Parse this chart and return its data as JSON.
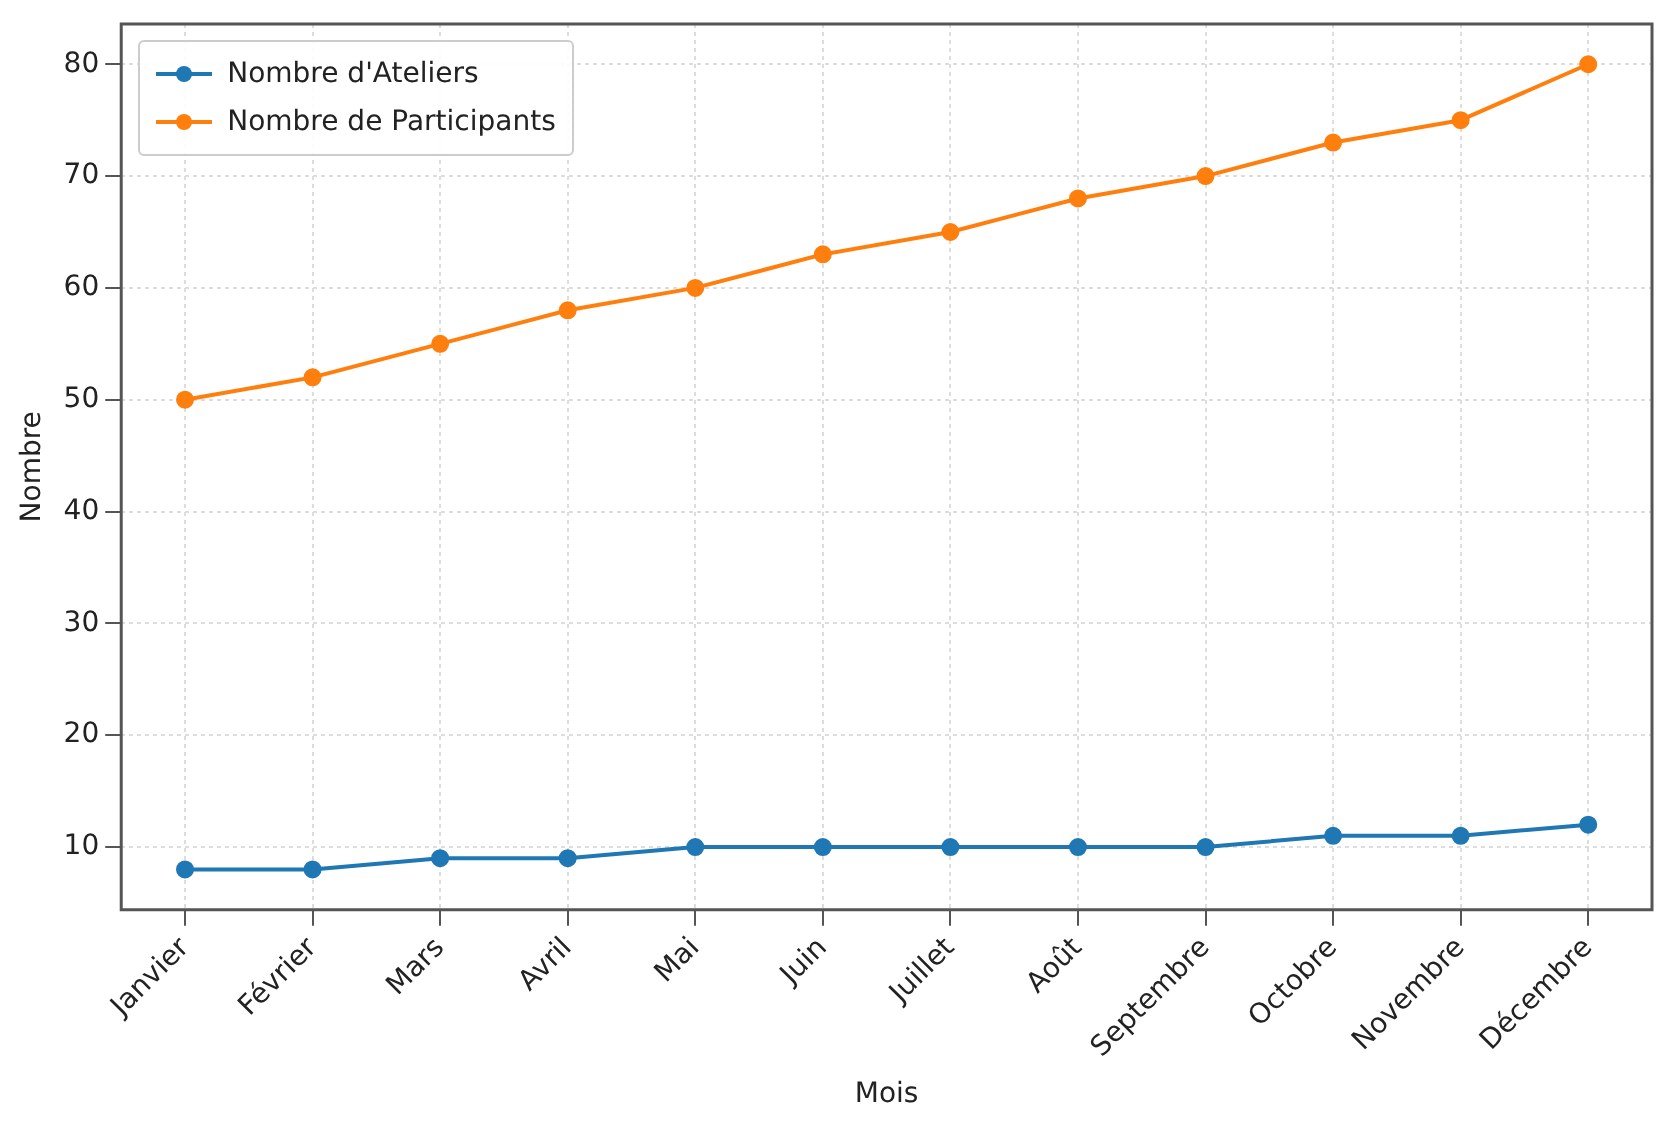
{
  "chart_data": {
    "type": "line",
    "xlabel": "Mois",
    "ylabel": "Nombre",
    "categories": [
      "Janvier",
      "Février",
      "Mars",
      "Avril",
      "Mai",
      "Juin",
      "Juillet",
      "Août",
      "Septembre",
      "Octobre",
      "Novembre",
      "Décembre"
    ],
    "series": [
      {
        "name": "Nombre d'Ateliers",
        "color": "#1f77b4",
        "values": [
          8,
          8,
          9,
          9,
          10,
          10,
          10,
          10,
          10,
          11,
          11,
          12
        ]
      },
      {
        "name": "Nombre de Participants",
        "color": "#ff7f0e",
        "values": [
          50,
          52,
          55,
          58,
          60,
          63,
          65,
          68,
          70,
          73,
          75,
          80
        ]
      }
    ],
    "ylim": [
      4.4,
      83.6
    ],
    "yticks": [
      10,
      20,
      30,
      40,
      50,
      60,
      70,
      80
    ],
    "grid": true,
    "legend": "top left",
    "marker": "circle",
    "line_style": "solid"
  }
}
